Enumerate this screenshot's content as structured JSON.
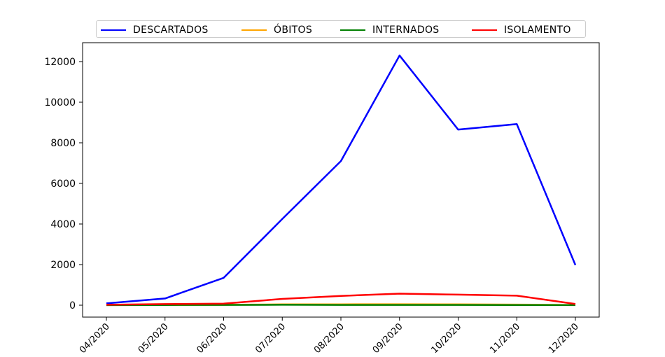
{
  "chart_data": {
    "type": "line",
    "categories": [
      "04/2020",
      "05/2020",
      "06/2020",
      "07/2020",
      "08/2020",
      "09/2020",
      "10/2020",
      "11/2020",
      "12/2020"
    ],
    "series": [
      {
        "name": "DESCARTADOS",
        "color": "#0000ff",
        "values": [
          90,
          330,
          1350,
          4250,
          7100,
          12300,
          8650,
          8920,
          1980
        ]
      },
      {
        "name": "ÓBITOS",
        "color": "#ffa500",
        "values": [
          5,
          10,
          20,
          40,
          45,
          50,
          40,
          30,
          10
        ]
      },
      {
        "name": "INTERNADOS",
        "color": "#008000",
        "values": [
          5,
          10,
          15,
          20,
          15,
          15,
          15,
          10,
          5
        ]
      },
      {
        "name": "ISOLAMENTO",
        "color": "#ff0000",
        "values": [
          20,
          55,
          80,
          310,
          460,
          570,
          520,
          470,
          60
        ]
      }
    ],
    "yticks": [
      0,
      2000,
      4000,
      6000,
      8000,
      10000,
      12000
    ],
    "ylim": [
      -600,
      12900
    ],
    "legend_position": "top-center",
    "grid": false,
    "title": "",
    "xlabel": "",
    "ylabel": ""
  }
}
